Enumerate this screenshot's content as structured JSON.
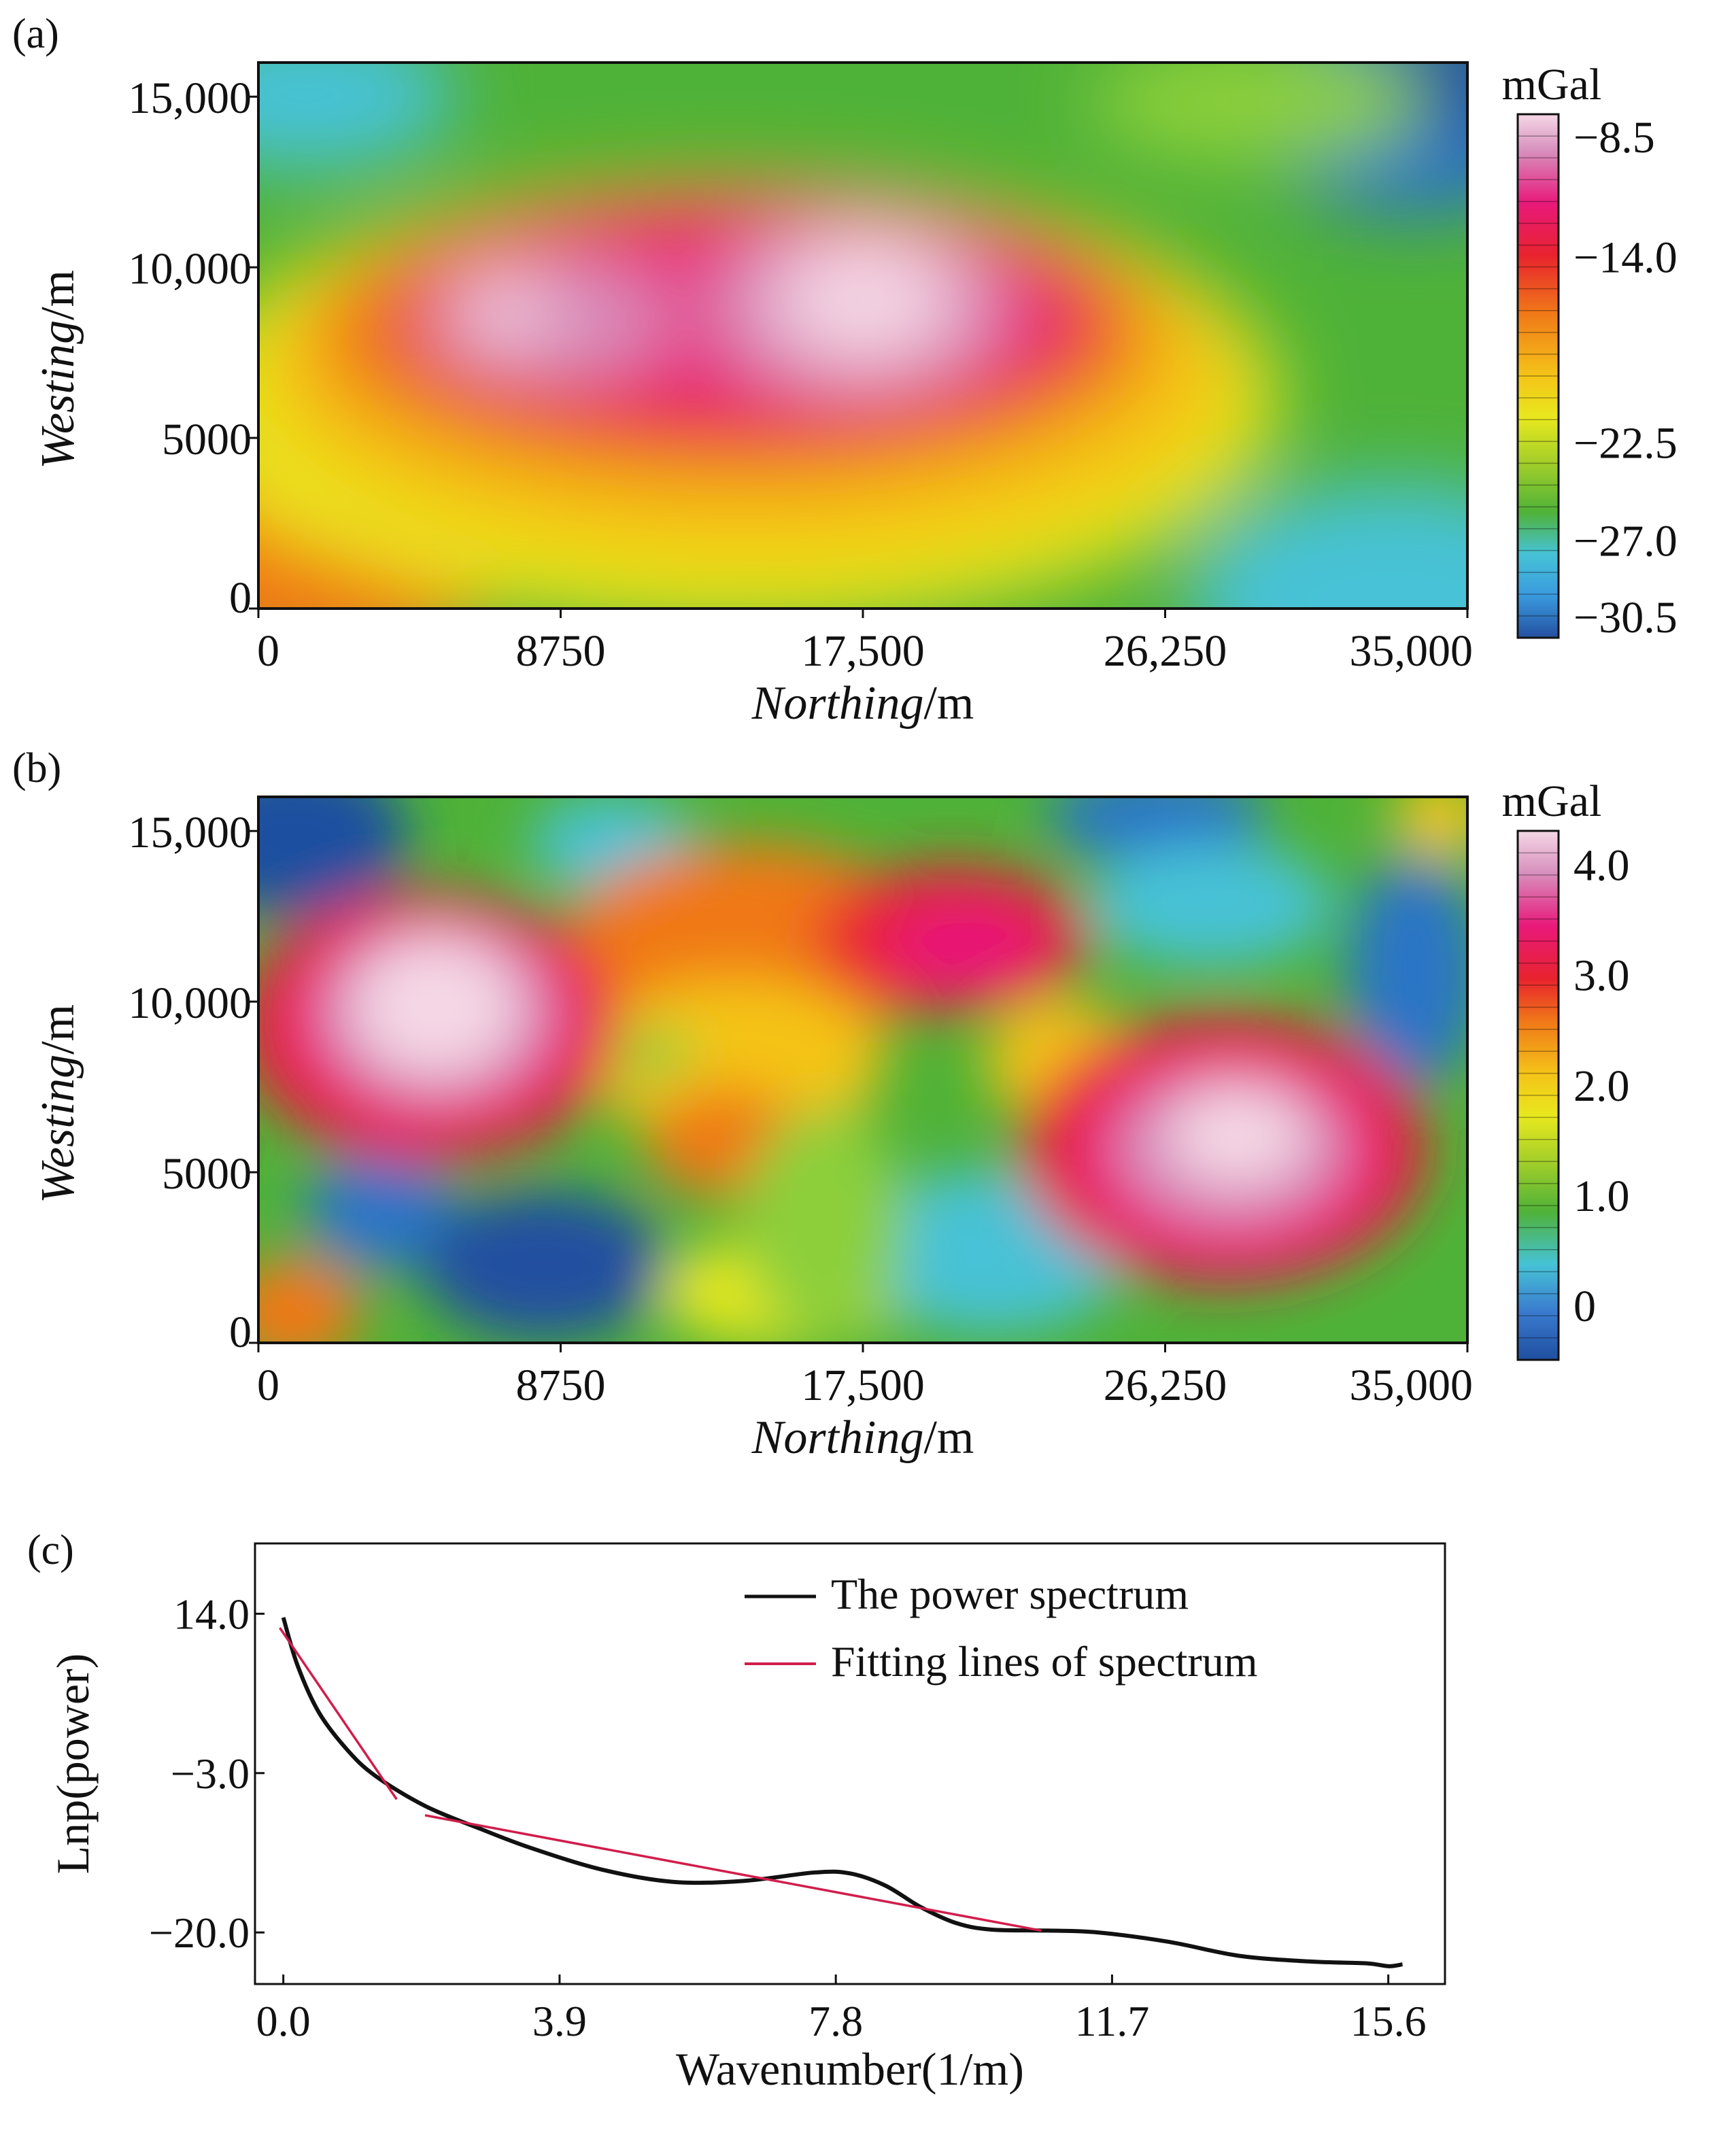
{
  "chart_data": [
    {
      "panel": "(a)",
      "type": "heatmap",
      "xlabel_italic": "Northing",
      "xlabel_unit": "/m",
      "ylabel_italic": "Westing",
      "ylabel_unit": "/m",
      "xlim": [
        0,
        35000
      ],
      "ylim": [
        0,
        16000
      ],
      "xticks": [
        0,
        8750,
        17500,
        26250,
        35000
      ],
      "xtick_labels": [
        "0",
        "8750",
        "17,500",
        "26,250",
        "35,000"
      ],
      "yticks": [
        0,
        5000,
        10000,
        15000
      ],
      "ytick_labels": [
        "0",
        "5000",
        "10,000",
        "15,000"
      ],
      "colorbar": {
        "unit": "mGal",
        "range": [
          -31.5,
          -7.5
        ],
        "ticks": [
          -8.5,
          -14.0,
          -22.5,
          -27.0,
          -30.5
        ],
        "tick_labels": [
          "−8.5",
          "−14.0",
          "−22.5",
          "−27.0",
          "−30.5"
        ]
      },
      "features": [
        {
          "x": 7000,
          "y": 8600,
          "value": -9.5
        },
        {
          "x": 10000,
          "y": 8200,
          "value": -10.5
        },
        {
          "x": 16500,
          "y": 8800,
          "value": -8.5
        },
        {
          "x": 19000,
          "y": 8400,
          "value": -9.0
        },
        {
          "x": 33500,
          "y": 15500,
          "value": -30.5
        }
      ]
    },
    {
      "panel": "(b)",
      "type": "heatmap",
      "xlabel_italic": "Northing",
      "xlabel_unit": "/m",
      "ylabel_italic": "Westing",
      "ylabel_unit": "/m",
      "xlim": [
        0,
        35000
      ],
      "ylim": [
        0,
        16000
      ],
      "xticks": [
        0,
        8750,
        17500,
        26250,
        35000
      ],
      "xtick_labels": [
        "0",
        "8750",
        "17,500",
        "26,250",
        "35,000"
      ],
      "yticks": [
        0,
        5000,
        10000,
        15000
      ],
      "ytick_labels": [
        "0",
        "5000",
        "10,000",
        "15,000"
      ],
      "colorbar": {
        "unit": "mGal",
        "range": [
          -0.5,
          4.3
        ],
        "ticks": [
          4.0,
          3.0,
          2.0,
          1.0,
          0
        ],
        "tick_labels": [
          "4.0",
          "3.0",
          "2.0",
          "1.0",
          "0"
        ]
      },
      "features": [
        {
          "x": 4300,
          "y": 9200,
          "value": 4.2
        },
        {
          "x": 30000,
          "y": 5900,
          "value": 4.2
        },
        {
          "x": 19500,
          "y": 11600,
          "value": 3.4
        },
        {
          "x": 20700,
          "y": 11500,
          "value": 3.6
        },
        {
          "x": 1200,
          "y": 15500,
          "value": -0.4
        },
        {
          "x": 8000,
          "y": 1800,
          "value": -0.3
        },
        {
          "x": 32000,
          "y": 15000,
          "value": -0.1
        },
        {
          "x": 34300,
          "y": 10500,
          "value": -0.2
        }
      ]
    },
    {
      "panel": "(c)",
      "type": "line",
      "xlabel": "Wavenumber(1/m)",
      "ylabel": "Lnp(power)",
      "xlim": [
        -0.4,
        16.4
      ],
      "ylim": [
        -25.5,
        21.5
      ],
      "xticks": [
        0.0,
        3.9,
        7.8,
        11.7,
        15.6
      ],
      "xtick_labels": [
        "0.0",
        "3.9",
        "7.8",
        "11.7",
        "15.6"
      ],
      "yticks": [
        14.0,
        -3.0,
        -20.0
      ],
      "ytick_labels": [
        "14.0",
        "−3.0",
        "−20.0"
      ],
      "legend": {
        "position": "top-right"
      },
      "series": [
        {
          "name": "The power spectrum",
          "color": "#111111",
          "x": [
            0.0,
            0.2,
            0.5,
            0.9,
            1.3,
            2.0,
            2.8,
            3.5,
            4.5,
            5.5,
            6.5,
            7.5,
            8.0,
            8.5,
            9.0,
            9.5,
            10.0,
            10.8,
            11.5,
            12.5,
            13.5,
            14.5,
            15.3,
            15.6,
            15.8
          ],
          "y": [
            13.6,
            8.5,
            3.5,
            -0.5,
            -3.3,
            -6.5,
            -9.0,
            -11.0,
            -13.3,
            -14.6,
            -14.5,
            -13.6,
            -13.7,
            -15.0,
            -17.3,
            -19.0,
            -19.7,
            -19.8,
            -20.0,
            -21.0,
            -22.5,
            -23.1,
            -23.3,
            -23.6,
            -23.4
          ]
        },
        {
          "name": "Fitting lines of spectrum",
          "color": "#d01e4c",
          "segments": [
            {
              "x": [
                -0.05,
                1.6
              ],
              "y": [
                12.5,
                -5.8
              ]
            },
            {
              "x": [
                2.0,
                10.7
              ],
              "y": [
                -7.5,
                -19.8
              ]
            }
          ]
        }
      ]
    }
  ]
}
